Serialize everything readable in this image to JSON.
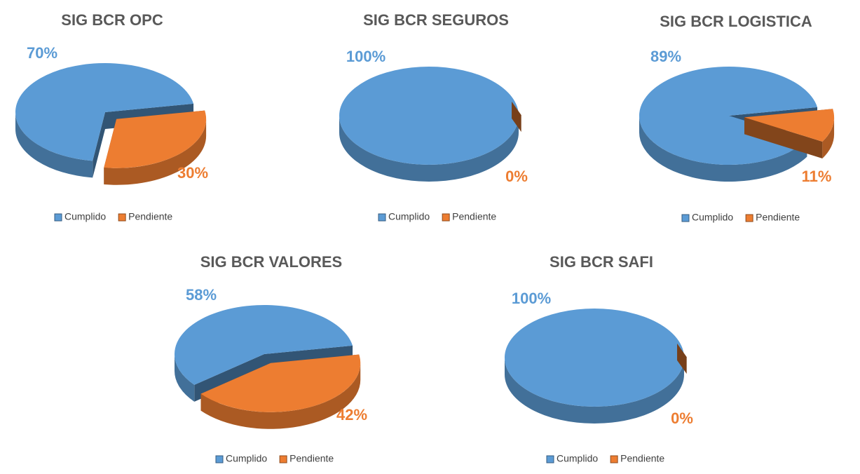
{
  "chart_data": [
    {
      "type": "pie",
      "title": "SIG BCR OPC",
      "categories": [
        "Cumplido",
        "Pendiente"
      ],
      "values": [
        70,
        30
      ],
      "value_labels": [
        "70%",
        "30%"
      ],
      "colors": [
        "#5b9bd5",
        "#ed7d31"
      ],
      "legend": "bottom"
    },
    {
      "type": "pie",
      "title": "SIG BCR SEGUROS",
      "categories": [
        "Cumplido",
        "Pendiente"
      ],
      "values": [
        100,
        0
      ],
      "value_labels": [
        "100%",
        "0%"
      ],
      "colors": [
        "#5b9bd5",
        "#ed7d31"
      ],
      "legend": "bottom"
    },
    {
      "type": "pie",
      "title": "SIG BCR LOGISTICA",
      "categories": [
        "Cumplido",
        "Pendiente"
      ],
      "values": [
        89,
        11
      ],
      "value_labels": [
        "89%",
        "11%"
      ],
      "colors": [
        "#5b9bd5",
        "#ed7d31"
      ],
      "legend": "bottom"
    },
    {
      "type": "pie",
      "title": "SIG BCR VALORES",
      "categories": [
        "Cumplido",
        "Pendiente"
      ],
      "values": [
        58,
        42
      ],
      "value_labels": [
        "58%",
        "42%"
      ],
      "colors": [
        "#5b9bd5",
        "#ed7d31"
      ],
      "legend": "bottom"
    },
    {
      "type": "pie",
      "title": "SIG BCR SAFI",
      "categories": [
        "Cumplido",
        "Pendiente"
      ],
      "values": [
        100,
        0
      ],
      "value_labels": [
        "100%",
        "0%"
      ],
      "colors": [
        "#5b9bd5",
        "#ed7d31"
      ],
      "legend": "bottom"
    }
  ]
}
